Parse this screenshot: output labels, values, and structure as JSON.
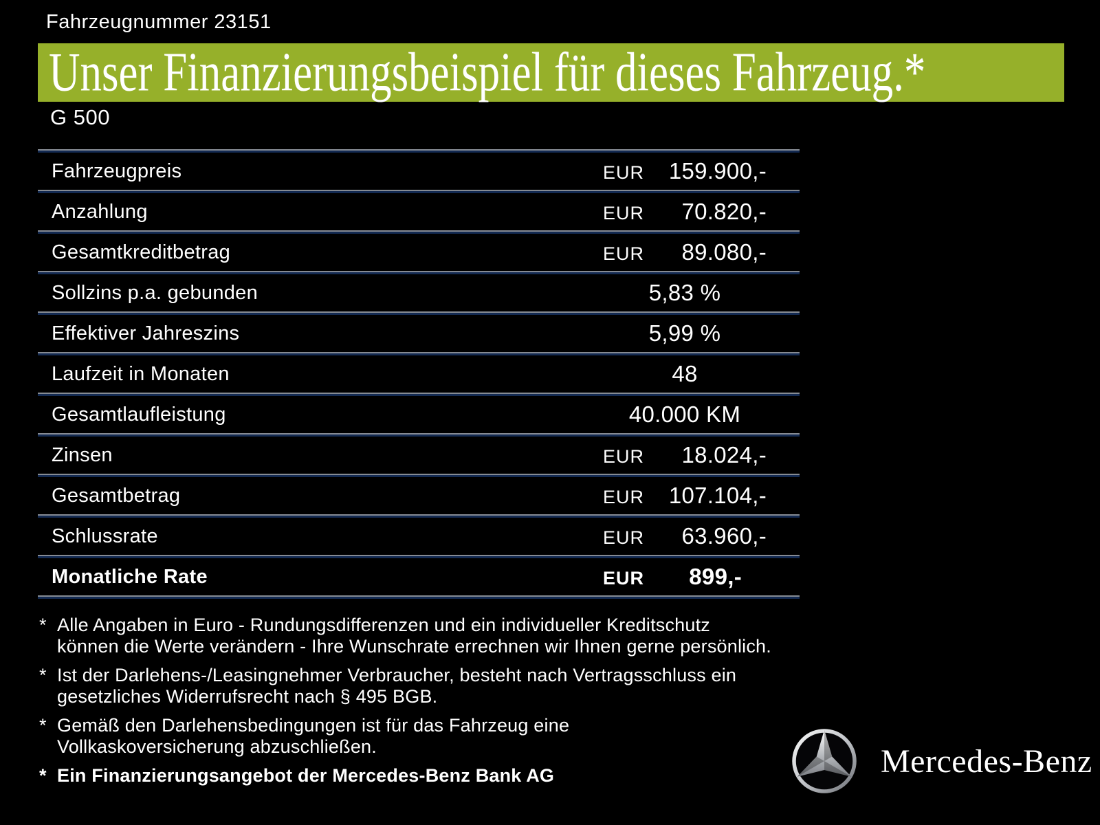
{
  "header": {
    "vehicle_number": "Fahrzeugnummer 23151",
    "title": "Unser Finanzierungsbeispiel für dieses Fahrzeug.*",
    "model": "G 500"
  },
  "colors": {
    "background": "#000000",
    "accent_green": "#96b02a",
    "divider_top_gray": "#868b93",
    "divider_bottom_navy": "#132a52",
    "text": "#ffffff"
  },
  "table": {
    "rows": [
      {
        "label": "Fahrzeugpreis",
        "currency": "EUR",
        "value": "159.900,-",
        "bold": false
      },
      {
        "label": "Anzahlung",
        "currency": "EUR",
        "value": "70.820,-",
        "bold": false
      },
      {
        "label": "Gesamtkreditbetrag",
        "currency": "EUR",
        "value": "89.080,-",
        "bold": false
      },
      {
        "label": "Sollzins p.a. gebunden",
        "currency": "",
        "value": "5,83 %",
        "bold": false
      },
      {
        "label": "Effektiver Jahreszins",
        "currency": "",
        "value": "5,99 %",
        "bold": false
      },
      {
        "label": "Laufzeit in Monaten",
        "currency": "",
        "value": "48",
        "bold": false
      },
      {
        "label": "Gesamtlaufleistung",
        "currency": "",
        "value": "40.000 KM",
        "bold": false
      },
      {
        "label": "Zinsen",
        "currency": "EUR",
        "value": "18.024,-",
        "bold": false
      },
      {
        "label": "Gesamtbetrag",
        "currency": "EUR",
        "value": "107.104,-",
        "bold": false
      },
      {
        "label": "Schlussrate",
        "currency": "EUR",
        "value": "63.960,-",
        "bold": false
      },
      {
        "label": "Monatliche Rate",
        "currency": "EUR",
        "value": "899,-",
        "bold": true
      }
    ]
  },
  "footnotes": [
    {
      "marker": "*",
      "bold": false,
      "text": "Alle Angaben in Euro - Rundungsdifferenzen und ein individueller Kreditschutz\nkönnen die Werte verändern - Ihre Wunschrate errechnen wir Ihnen gerne persönlich."
    },
    {
      "marker": "*",
      "bold": false,
      "text": "Ist der Darlehens-/Leasingnehmer Verbraucher, besteht nach Vertragsschluss ein\ngesetzliches  Widerrufsrecht nach § 495 BGB."
    },
    {
      "marker": "*",
      "bold": false,
      "text": "Gemäß den Darlehensbedingungen ist für das Fahrzeug eine\nVollkaskoversicherung abzuschließen."
    },
    {
      "marker": "*",
      "bold": true,
      "text": "Ein Finanzierungsangebot der Mercedes-Benz Bank AG"
    }
  ],
  "brand": {
    "star_icon": "mercedes-star-icon",
    "wordmark": "Mercedes-Benz"
  }
}
